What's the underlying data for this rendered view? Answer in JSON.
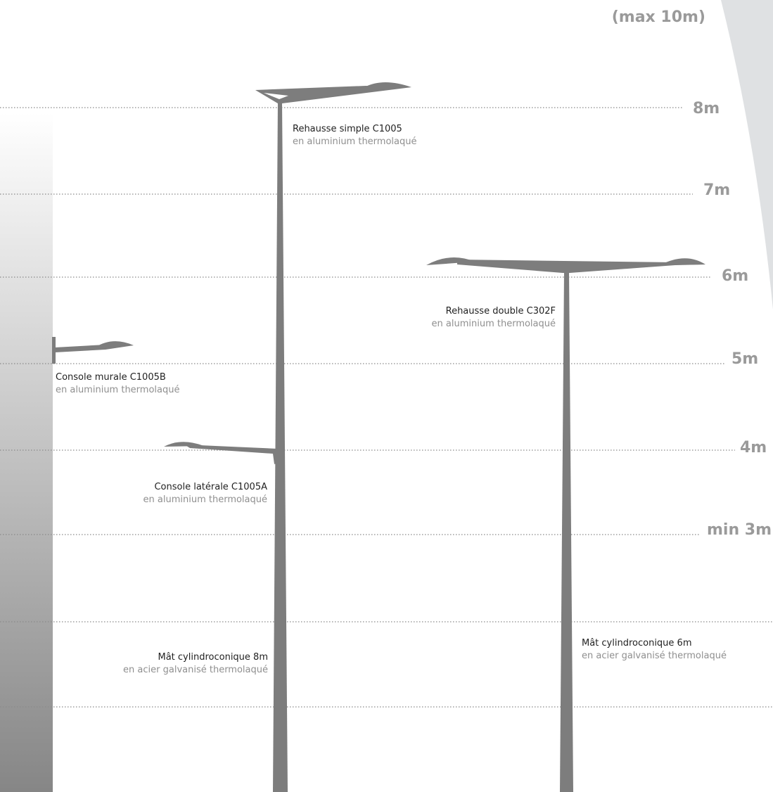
{
  "heights": [
    {
      "label": "(max 10m)"
    },
    {
      "label": "8m"
    },
    {
      "label": "7m"
    },
    {
      "label": "6m"
    },
    {
      "label": "5m"
    },
    {
      "label": "4m"
    },
    {
      "label": "min 3m"
    }
  ],
  "components": [
    {
      "name": "Rehausse simple C1005",
      "material": "en aluminium thermolaqué"
    },
    {
      "name": "Rehausse double C302F",
      "material": "en aluminium thermolaqué"
    },
    {
      "name": "Console murale C1005B",
      "material": "en aluminium thermolaqué"
    },
    {
      "name": "Console latérale C1005A",
      "material": "en aluminium thermolaqué"
    },
    {
      "name": "Mât cylindroconique 8m",
      "material": "en acier galvanisé thermolaqué"
    },
    {
      "name": "Mât cylindroconique 6m",
      "material": "en acier galvanisé thermolaqué"
    }
  ]
}
